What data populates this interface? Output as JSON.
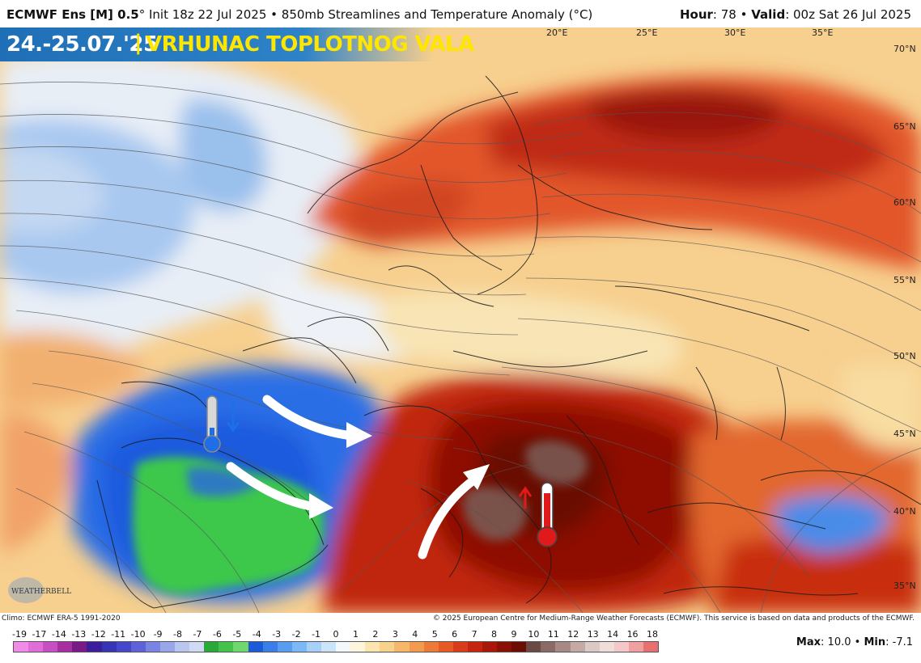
{
  "header": {
    "model": "ECMWF Ens [M] 0.5",
    "deg": "°",
    "init": "Init 18z 22 Jul 2025",
    "bullet": "•",
    "product": "850mb Streamlines and Temperature Anomaly (°C)",
    "hour_label": "Hour",
    "hour_value": ": 78",
    "valid_label": "Valid",
    "valid_value": ": 00z Sat 26 Jul 2025"
  },
  "banner": {
    "dates": "24.-25.07.'25",
    "separator": "|",
    "title": "VRHUNAC TOPLOTNOG VALA"
  },
  "lon_labels": [
    "20°E",
    "25°E",
    "30°E",
    "35°E"
  ],
  "lat_labels": [
    "70°N",
    "65°N",
    "60°N",
    "55°N",
    "50°N",
    "45°N",
    "40°N",
    "35°N"
  ],
  "footer": {
    "climo": "Climo: ECMWF ERA-5 1991-2020",
    "copyright": "© 2025 European Centre for Medium-Range Weather Forecasts (ECMWF). This service is based on data and products of the ECMWF.",
    "max_label": "Max",
    "max_value": ": 10.0",
    "bullet": "•",
    "min_label": "Min",
    "min_value": ": -7.1"
  },
  "logo_text": "WEATHERBELL",
  "scale_labels": [
    "-19",
    "-17",
    "-14",
    "-13",
    "-12",
    "-11",
    "-10",
    "-9",
    "-8",
    "-7",
    "-6",
    "-5",
    "-4",
    "-3",
    "-2",
    "-1",
    "0",
    "1",
    "2",
    "3",
    "4",
    "5",
    "6",
    "7",
    "8",
    "9",
    "10",
    "11",
    "12",
    "13",
    "14",
    "16",
    "18"
  ],
  "scale_colors": [
    "#f08ce8",
    "#e06ed8",
    "#c84ec4",
    "#a8309e",
    "#7a1a86",
    "#3a1e9a",
    "#3434b4",
    "#4646cc",
    "#5e62d8",
    "#7a84e2",
    "#9aa6ea",
    "#b8c6f0",
    "#d0daf4",
    "#2aa83c",
    "#46c24c",
    "#6ed86e",
    "#1e5ad8",
    "#3a7ee8",
    "#5a9cf0",
    "#7cb8f4",
    "#a6d0f8",
    "#cce4fa",
    "#f4f8fc",
    "#fdf6dc",
    "#fbe6b0",
    "#f8d28a",
    "#f5b86a",
    "#f29a50",
    "#ee7a3a",
    "#e65a28",
    "#d83c1a",
    "#c42410",
    "#a81808",
    "#8a1006",
    "#6e0c06",
    "#6b4a44",
    "#8a6a64",
    "#a88a84",
    "#c4aaa4",
    "#dcc8c4",
    "#f0dcd8",
    "#f4c8c8",
    "#f0a0a0",
    "#e87070"
  ],
  "colors": {
    "banner_bg": "#2d82c8",
    "banner_text": "#ffffff",
    "banner_accent": "#ffe600"
  }
}
